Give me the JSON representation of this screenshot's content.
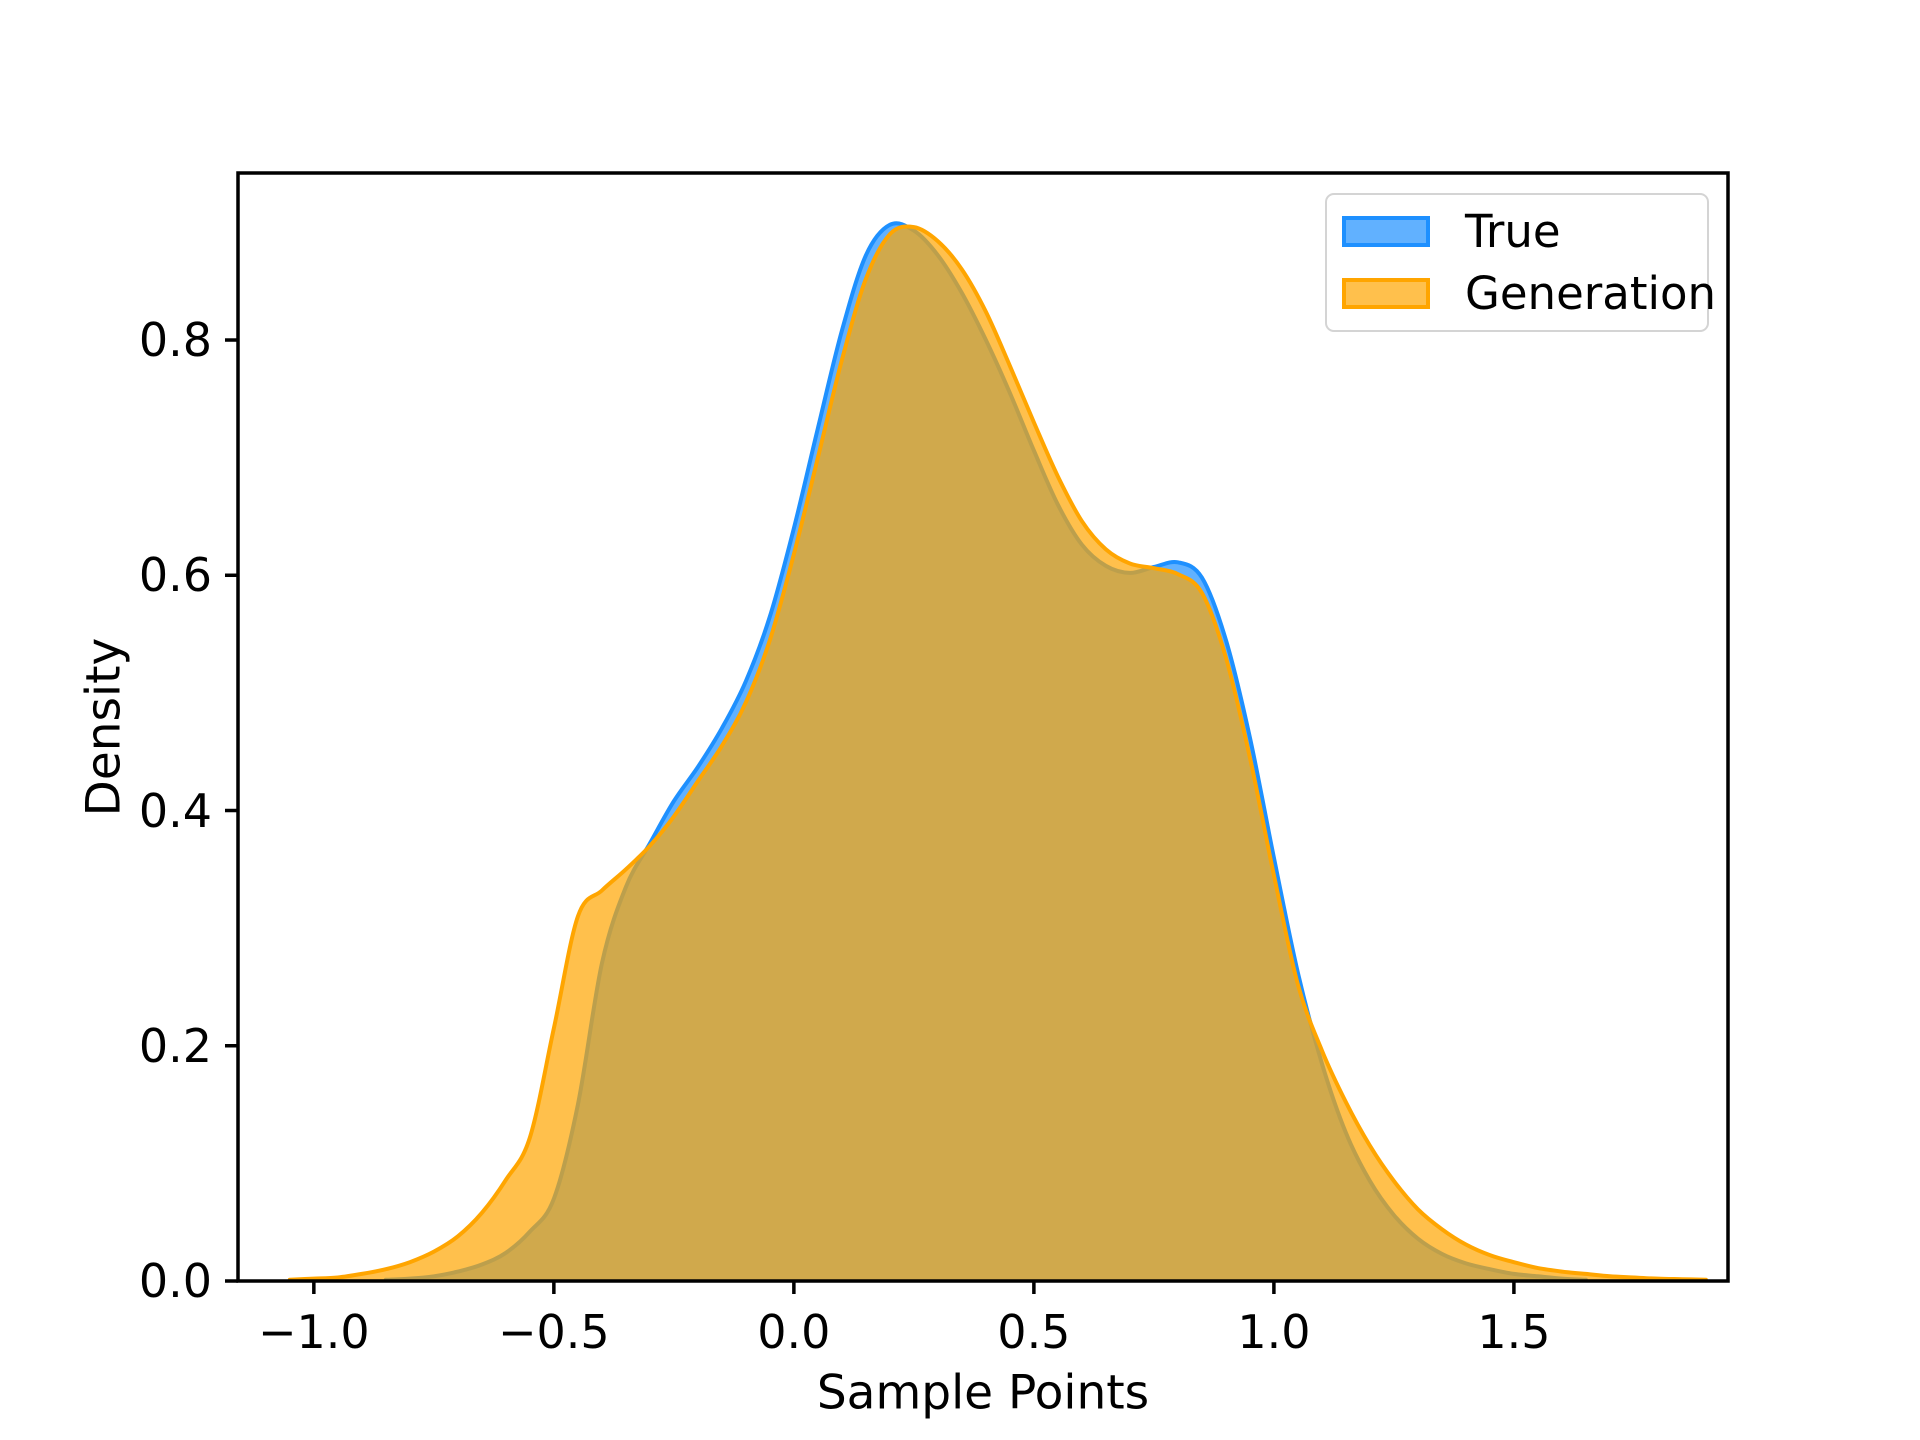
{
  "figure": {
    "background": "#ffffff"
  },
  "chart_data": {
    "type": "area",
    "kind": "kde-density",
    "title": "",
    "xlabel": "Sample Points",
    "ylabel": "Density",
    "xlim": [
      -1.158,
      1.946
    ],
    "ylim": [
      0,
      0.942
    ],
    "grid": false,
    "legend_position": "upper right",
    "xticks": {
      "values": [
        -1.0,
        -0.5,
        0.0,
        0.5,
        1.0,
        1.5
      ],
      "labels": [
        "−1.0",
        "−0.5",
        "0.0",
        "0.5",
        "1.0",
        "1.5"
      ]
    },
    "yticks": {
      "values": [
        0.0,
        0.2,
        0.4,
        0.6,
        0.8
      ],
      "labels": [
        "0.0",
        "0.2",
        "0.4",
        "0.6",
        "0.8"
      ]
    },
    "series": [
      {
        "name": "True",
        "line_color": "#1e90ff",
        "fill_color": "rgba(30,144,255,0.7)",
        "x": [
          -0.85,
          -0.8,
          -0.75,
          -0.7,
          -0.65,
          -0.6,
          -0.55,
          -0.5,
          -0.45,
          -0.4,
          -0.35,
          -0.3,
          -0.25,
          -0.2,
          -0.15,
          -0.1,
          -0.05,
          0,
          0.05,
          0.1,
          0.15,
          0.2,
          0.25,
          0.3,
          0.35,
          0.4,
          0.45,
          0.5,
          0.55,
          0.6,
          0.65,
          0.7,
          0.75,
          0.8,
          0.85,
          0.9,
          0.95,
          1,
          1.05,
          1.1,
          1.15,
          1.2,
          1.25,
          1.3,
          1.35,
          1.4,
          1.45,
          1.5,
          1.55,
          1.6,
          1.65
        ],
        "y": [
          0.001,
          0.002,
          0.004,
          0.008,
          0.014,
          0.024,
          0.042,
          0.07,
          0.15,
          0.27,
          0.335,
          0.372,
          0.408,
          0.437,
          0.47,
          0.51,
          0.565,
          0.64,
          0.725,
          0.808,
          0.872,
          0.898,
          0.893,
          0.872,
          0.84,
          0.8,
          0.755,
          0.706,
          0.66,
          0.626,
          0.608,
          0.602,
          0.607,
          0.611,
          0.598,
          0.545,
          0.462,
          0.36,
          0.262,
          0.185,
          0.126,
          0.085,
          0.056,
          0.036,
          0.023,
          0.015,
          0.01,
          0.006,
          0.004,
          0.002,
          0.001
        ]
      },
      {
        "name": "Generation",
        "line_color": "#ffa500",
        "fill_color": "rgba(255,165,0,0.7)",
        "x": [
          -1.05,
          -1,
          -0.95,
          -0.9,
          -0.85,
          -0.8,
          -0.75,
          -0.7,
          -0.65,
          -0.6,
          -0.55,
          -0.5,
          -0.45,
          -0.4,
          -0.35,
          -0.3,
          -0.25,
          -0.2,
          -0.15,
          -0.1,
          -0.05,
          0,
          0.05,
          0.1,
          0.15,
          0.2,
          0.25,
          0.3,
          0.35,
          0.4,
          0.45,
          0.5,
          0.55,
          0.6,
          0.65,
          0.7,
          0.75,
          0.8,
          0.85,
          0.9,
          0.95,
          1,
          1.05,
          1.1,
          1.15,
          1.2,
          1.25,
          1.3,
          1.35,
          1.4,
          1.45,
          1.5,
          1.55,
          1.6,
          1.65,
          1.7,
          1.75,
          1.8,
          1.85,
          1.9
        ],
        "y": [
          0.001,
          0.002,
          0.003,
          0.006,
          0.01,
          0.016,
          0.025,
          0.038,
          0.058,
          0.086,
          0.122,
          0.215,
          0.31,
          0.332,
          0.35,
          0.37,
          0.395,
          0.425,
          0.455,
          0.492,
          0.545,
          0.618,
          0.7,
          0.783,
          0.852,
          0.89,
          0.896,
          0.884,
          0.86,
          0.824,
          0.778,
          0.73,
          0.684,
          0.646,
          0.622,
          0.61,
          0.606,
          0.601,
          0.585,
          0.53,
          0.445,
          0.345,
          0.252,
          0.196,
          0.152,
          0.115,
          0.085,
          0.061,
          0.044,
          0.031,
          0.022,
          0.016,
          0.011,
          0.008,
          0.006,
          0.004,
          0.003,
          0.002,
          0.0015,
          0.001
        ]
      }
    ],
    "axis_color": "#000000",
    "legend_border_color": "#d4d4d4"
  }
}
